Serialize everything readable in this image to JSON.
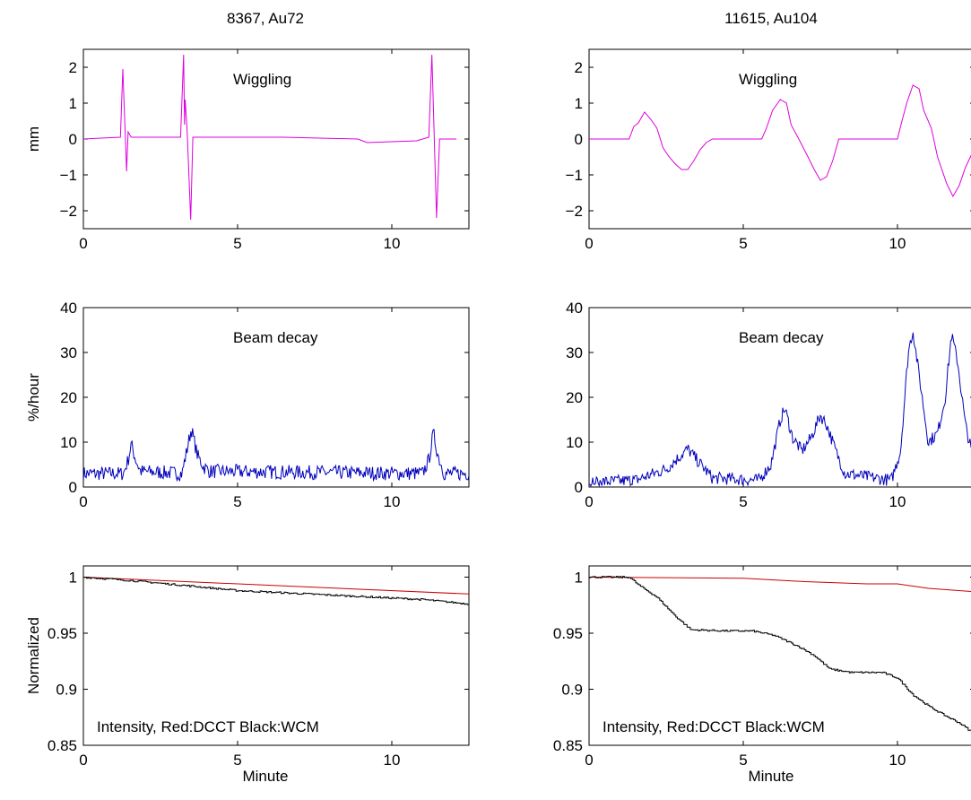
{
  "chart_data": [
    {
      "type": "line",
      "title": "8367, Au72",
      "ylabel": "mm",
      "xlabel": "",
      "annotation": "Wiggling",
      "xlim": [
        0,
        12.5
      ],
      "ylim": [
        -2.5,
        2.5
      ],
      "xticks": [
        0,
        5,
        10
      ],
      "yticks": [
        -2,
        -1,
        0,
        1,
        2
      ],
      "ytick_labels": [
        "−2",
        "−1",
        "0",
        "1",
        "2"
      ],
      "series": [
        {
          "color": "#dd00dd",
          "x": [
            0,
            1.2,
            1.28,
            1.4,
            1.45,
            1.55,
            3.15,
            3.25,
            3.28,
            3.3,
            3.36,
            3.48,
            3.55,
            6.5,
            8.9,
            9.2,
            10.8,
            11.2,
            11.3,
            11.45,
            11.55,
            12.1
          ],
          "y": [
            0,
            0.05,
            1.95,
            -0.9,
            0.2,
            0.05,
            0.05,
            2.35,
            0.4,
            1.1,
            0.3,
            -2.25,
            0.05,
            0.05,
            0.0,
            -0.1,
            -0.05,
            0.05,
            2.35,
            -2.2,
            0.0,
            0.0
          ]
        }
      ]
    },
    {
      "type": "line",
      "title": "11615, Au104",
      "ylabel": "",
      "xlabel": "",
      "annotation": "Wiggling",
      "xlim": [
        0,
        12.5
      ],
      "ylim": [
        -2.5,
        2.5
      ],
      "xticks": [
        0,
        5,
        10
      ],
      "yticks": [
        -2,
        -1,
        0,
        1,
        2
      ],
      "ytick_labels": [
        "−2",
        "−1",
        "0",
        "1",
        "2"
      ],
      "series": [
        {
          "color": "#dd00dd",
          "x": [
            0,
            1.3,
            1.45,
            1.6,
            1.8,
            2.0,
            2.2,
            2.4,
            2.6,
            2.8,
            3.0,
            3.2,
            3.4,
            3.6,
            3.8,
            4.0,
            5.6,
            5.75,
            5.95,
            6.2,
            6.4,
            6.55,
            6.8,
            7.1,
            7.3,
            7.5,
            7.7,
            7.9,
            8.1,
            10.0,
            10.1,
            10.3,
            10.5,
            10.7,
            10.85,
            11.1,
            11.3,
            11.6,
            11.8,
            12.0,
            12.2,
            12.5
          ],
          "y": [
            0,
            0,
            0.35,
            0.45,
            0.75,
            0.55,
            0.3,
            -0.25,
            -0.5,
            -0.7,
            -0.85,
            -0.85,
            -0.6,
            -0.3,
            -0.1,
            0.0,
            0.0,
            0.3,
            0.8,
            1.1,
            1.0,
            0.4,
            0.0,
            -0.5,
            -0.85,
            -1.15,
            -1.05,
            -0.6,
            0.0,
            0.0,
            0.35,
            1.0,
            1.5,
            1.4,
            0.8,
            0.3,
            -0.5,
            -1.25,
            -1.6,
            -1.3,
            -0.8,
            -0.25
          ]
        }
      ]
    },
    {
      "type": "line",
      "title": "",
      "ylabel": "%/hour",
      "xlabel": "",
      "annotation": "Beam decay",
      "xlim": [
        0,
        12.5
      ],
      "ylim": [
        0,
        40
      ],
      "xticks": [
        0,
        5,
        10
      ],
      "yticks": [
        0,
        10,
        20,
        30,
        40
      ],
      "noise": 1.6,
      "series": [
        {
          "color": "#0000bb",
          "x": [
            0,
            1.3,
            1.45,
            1.55,
            1.7,
            1.85,
            3.2,
            3.35,
            3.5,
            3.7,
            3.9,
            4.1,
            11.0,
            11.2,
            11.35,
            11.5,
            11.7,
            12.5
          ],
          "y": [
            3,
            3,
            6,
            9.5,
            6,
            3.5,
            3,
            8,
            13,
            7,
            4.5,
            3.5,
            3,
            6,
            12,
            7,
            3,
            3
          ]
        }
      ]
    },
    {
      "type": "line",
      "title": "",
      "ylabel": "",
      "xlabel": "",
      "annotation": "Beam decay",
      "xlim": [
        0,
        12.5
      ],
      "ylim": [
        0,
        40
      ],
      "xticks": [
        0,
        5,
        10
      ],
      "yticks": [
        0,
        10,
        20,
        30,
        40
      ],
      "noise": 1.4,
      "series": [
        {
          "color": "#0000bb",
          "x": [
            0,
            1.5,
            2.5,
            3.2,
            3.5,
            4.0,
            5.5,
            5.9,
            6.2,
            6.35,
            6.6,
            6.9,
            7.2,
            7.5,
            7.7,
            8.0,
            8.3,
            9.8,
            10.1,
            10.35,
            10.5,
            10.7,
            11.0,
            11.3,
            11.55,
            11.75,
            11.95,
            12.2,
            12.5
          ],
          "y": [
            1,
            1.5,
            4,
            8.5,
            6,
            2,
            1.5,
            5,
            15,
            17.5,
            11,
            8,
            11,
            16,
            14,
            8,
            3,
            1.5,
            8,
            30,
            35,
            25,
            10,
            12,
            20,
            34,
            28,
            14,
            5
          ]
        }
      ]
    },
    {
      "type": "line",
      "title": "",
      "ylabel": "Normalized",
      "xlabel": "Minute",
      "annotation": "Intensity, Red:DCCT Black:WCM",
      "xlim": [
        0,
        12.5
      ],
      "ylim": [
        0.85,
        1.01
      ],
      "xticks": [
        0,
        5,
        10
      ],
      "yticks": [
        0.85,
        0.9,
        0.95,
        1
      ],
      "series": [
        {
          "color": "#cc0000",
          "x": [
            0,
            12.5
          ],
          "y": [
            1.0,
            0.985
          ]
        },
        {
          "color": "#000000",
          "step": true,
          "x": [
            0,
            1.5,
            3.5,
            5.0,
            8.0,
            11.0,
            12.5
          ],
          "y": [
            1.0,
            0.997,
            0.992,
            0.988,
            0.984,
            0.98,
            0.976
          ]
        }
      ]
    },
    {
      "type": "line",
      "title": "",
      "ylabel": "",
      "xlabel": "Minute",
      "annotation": "Intensity, Red:DCCT Black:WCM",
      "xlim": [
        0,
        12.5
      ],
      "ylim": [
        0.85,
        1.01
      ],
      "xticks": [
        0,
        5,
        10
      ],
      "yticks": [
        0.85,
        0.9,
        0.95,
        1
      ],
      "series": [
        {
          "color": "#cc0000",
          "x": [
            0,
            5.0,
            7.0,
            9.0,
            10.0,
            11.0,
            12.5
          ],
          "y": [
            1.0,
            0.999,
            0.996,
            0.994,
            0.994,
            0.99,
            0.987
          ]
        },
        {
          "color": "#000000",
          "step": true,
          "x": [
            0,
            1.3,
            1.6,
            2.2,
            2.8,
            3.3,
            4.5,
            5.3,
            6.0,
            6.8,
            7.3,
            7.8,
            8.5,
            9.5,
            10.0,
            10.5,
            11.0,
            11.5,
            12.0,
            12.5
          ],
          "y": [
            1.0,
            1.0,
            0.993,
            0.982,
            0.965,
            0.953,
            0.952,
            0.952,
            0.948,
            0.938,
            0.93,
            0.918,
            0.915,
            0.915,
            0.91,
            0.895,
            0.885,
            0.877,
            0.87,
            0.86
          ]
        }
      ]
    }
  ]
}
